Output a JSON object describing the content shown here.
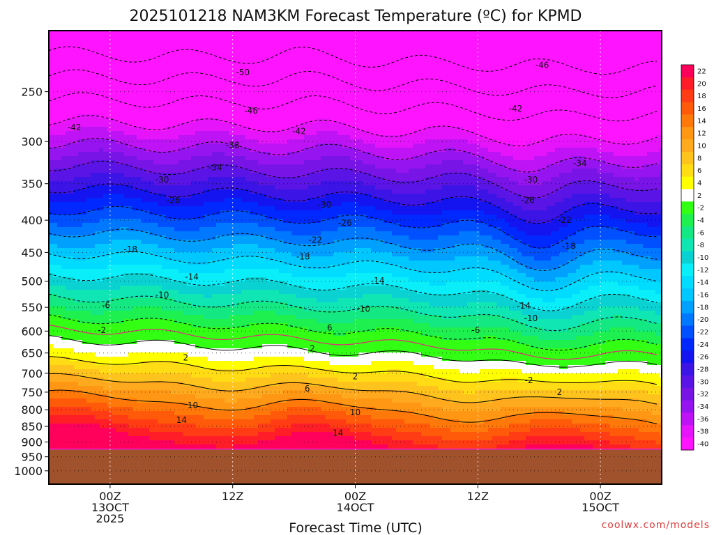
{
  "chart_data": {
    "type": "heatmap",
    "title": "2025101218 NAM3KM Forecast Temperature (ºC) for KPMD",
    "xlabel": "Forecast Time (UTC)",
    "ylabel": "",
    "credit": "coolwx.com/models",
    "x_ticks": [
      {
        "hour": 6,
        "lines": [
          "00Z",
          "13OCT",
          "2025"
        ]
      },
      {
        "hour": 18,
        "lines": [
          "12Z"
        ]
      },
      {
        "hour": 30,
        "lines": [
          "00Z",
          "14OCT"
        ]
      },
      {
        "hour": 42,
        "lines": [
          "12Z"
        ]
      },
      {
        "hour": 54,
        "lines": [
          "00Z",
          "15OCT"
        ]
      }
    ],
    "x_range_hours": [
      0,
      60
    ],
    "y_axis": {
      "type": "pressure",
      "top_hPa": 200,
      "bottom_hPa": 1050,
      "ticks": [
        250,
        300,
        350,
        400,
        450,
        500,
        550,
        600,
        650,
        700,
        750,
        800,
        850,
        900,
        950,
        1000
      ]
    },
    "surface_pressure_hPa": 925,
    "colorbar": {
      "ticks": [
        22,
        20,
        18,
        16,
        14,
        12,
        10,
        8,
        6,
        4,
        2,
        -2,
        -4,
        -6,
        -8,
        -10,
        -12,
        -14,
        -16,
        -18,
        -20,
        -22,
        -24,
        -26,
        -28,
        -30,
        -32,
        -34,
        -36,
        -38,
        -40
      ],
      "colors": [
        "#ff005a",
        "#ff1e28",
        "#ff3c14",
        "#ff5a0a",
        "#ff780a",
        "#ff9614",
        "#ffaa1e",
        "#ffc31e",
        "#ffdc14",
        "#ffff00",
        "#ffffff",
        "#32ff14",
        "#1ef050",
        "#14e882",
        "#0fe6b4",
        "#0ad2d2",
        "#0aeefa",
        "#00dcff",
        "#00c8ff",
        "#00a0ff",
        "#0078ff",
        "#0050ff",
        "#0028ff",
        "#1414f0",
        "#3c14e6",
        "#5a14e6",
        "#7814e6",
        "#9614f0",
        "#be14f5",
        "#e614fa",
        "#ff14ff"
      ]
    },
    "contour_labels": [
      {
        "hour": 19.0,
        "p": 233,
        "text": "-50"
      },
      {
        "hour": 48.3,
        "p": 227,
        "text": "-46"
      },
      {
        "hour": 2.5,
        "p": 285,
        "text": "-42"
      },
      {
        "hour": 19.8,
        "p": 268,
        "text": "-46"
      },
      {
        "hour": 45.7,
        "p": 266,
        "text": "-42"
      },
      {
        "hour": 24.5,
        "p": 289,
        "text": "-42"
      },
      {
        "hour": 18.0,
        "p": 304,
        "text": "-38"
      },
      {
        "hour": 16.3,
        "p": 330,
        "text": "-34"
      },
      {
        "hour": 52.0,
        "p": 325,
        "text": "-34"
      },
      {
        "hour": 11.1,
        "p": 345,
        "text": "-30"
      },
      {
        "hour": 47.2,
        "p": 345,
        "text": "-30"
      },
      {
        "hour": 12.2,
        "p": 372,
        "text": "-26"
      },
      {
        "hour": 46.9,
        "p": 372,
        "text": "-26"
      },
      {
        "hour": 27.0,
        "p": 378,
        "text": "-30"
      },
      {
        "hour": 29.0,
        "p": 404,
        "text": "-26"
      },
      {
        "hour": 50.5,
        "p": 400,
        "text": "-22"
      },
      {
        "hour": 26.1,
        "p": 430,
        "text": "-22"
      },
      {
        "hour": 8.0,
        "p": 445,
        "text": "-18"
      },
      {
        "hour": 50.9,
        "p": 440,
        "text": "-18"
      },
      {
        "hour": 24.9,
        "p": 457,
        "text": "-18"
      },
      {
        "hour": 14.0,
        "p": 492,
        "text": "-14"
      },
      {
        "hour": 32.2,
        "p": 499,
        "text": "-14"
      },
      {
        "hour": 11.1,
        "p": 526,
        "text": "-10"
      },
      {
        "hour": 46.5,
        "p": 547,
        "text": "-14"
      },
      {
        "hour": 30.8,
        "p": 553,
        "text": "-10"
      },
      {
        "hour": 5.6,
        "p": 546,
        "text": "-6"
      },
      {
        "hour": 47.2,
        "p": 573,
        "text": "-10"
      },
      {
        "hour": 5.2,
        "p": 598,
        "text": "-2"
      },
      {
        "hour": 27.5,
        "p": 593,
        "text": "6"
      },
      {
        "hour": 41.8,
        "p": 598,
        "text": "-6"
      },
      {
        "hour": 25.8,
        "p": 640,
        "text": "2"
      },
      {
        "hour": 13.4,
        "p": 661,
        "text": "2"
      },
      {
        "hour": 30.0,
        "p": 708,
        "text": "2"
      },
      {
        "hour": 47.0,
        "p": 718,
        "text": "-2"
      },
      {
        "hour": 25.3,
        "p": 741,
        "text": "6"
      },
      {
        "hour": 50.0,
        "p": 750,
        "text": "2"
      },
      {
        "hour": 14.1,
        "p": 787,
        "text": "10"
      },
      {
        "hour": 30.0,
        "p": 808,
        "text": "10"
      },
      {
        "hour": 13.0,
        "p": 831,
        "text": "14"
      },
      {
        "hour": 28.3,
        "p": 871,
        "text": "14"
      }
    ]
  }
}
